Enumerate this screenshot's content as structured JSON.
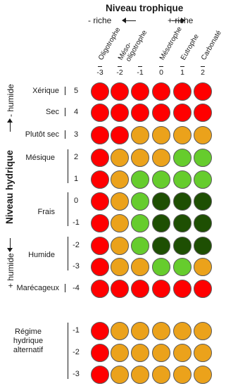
{
  "header": {
    "title": "Niveau trophique",
    "left_label": "- riche",
    "right_label": "+ riche"
  },
  "columns": [
    {
      "label": "Oligotrophe",
      "value": "-3"
    },
    {
      "label": "Méso-",
      "label2": "oligotrophe",
      "value": "-2"
    },
    {
      "label": "",
      "value": "-1"
    },
    {
      "label": "Mésotrophe",
      "value": "0"
    },
    {
      "label": "Eutrophe",
      "value": "1"
    },
    {
      "label": "Carbonaté",
      "value": "2"
    }
  ],
  "axis": {
    "title": "Niveau hydrique",
    "top_label": "- humide",
    "bottom_label": "+ humide"
  },
  "rows": [
    {
      "label": "Xérique",
      "value": "5",
      "dots": [
        "red",
        "red",
        "red",
        "red",
        "red",
        "red"
      ]
    },
    {
      "label": "Sec",
      "value": "4",
      "dots": [
        "red",
        "red",
        "red",
        "red",
        "red",
        "red"
      ]
    },
    {
      "label": "Plutôt sec",
      "value": "3",
      "dots": [
        "red",
        "red",
        "orange",
        "orange",
        "orange",
        "orange"
      ]
    },
    {
      "label": "",
      "value": "2",
      "dots": [
        "red",
        "orange",
        "orange",
        "orange",
        "lightgreen",
        "lightgreen"
      ]
    },
    {
      "label": "",
      "value": "1",
      "dots": [
        "red",
        "orange",
        "lightgreen",
        "lightgreen",
        "lightgreen",
        "lightgreen"
      ]
    },
    {
      "label": "",
      "value": "0",
      "dots": [
        "red",
        "orange",
        "lightgreen",
        "darkgreen",
        "darkgreen",
        "darkgreen"
      ]
    },
    {
      "label": "",
      "value": "-1",
      "dots": [
        "red",
        "orange",
        "lightgreen",
        "darkgreen",
        "darkgreen",
        "darkgreen"
      ]
    },
    {
      "label": "",
      "value": "-2",
      "dots": [
        "red",
        "orange",
        "lightgreen",
        "darkgreen",
        "darkgreen",
        "darkgreen"
      ]
    },
    {
      "label": "",
      "value": "-3",
      "dots": [
        "red",
        "orange",
        "orange",
        "lightgreen",
        "lightgreen",
        "orange"
      ]
    },
    {
      "label": "Marécageux",
      "value": "-4",
      "dots": [
        "red",
        "red",
        "red",
        "red",
        "red",
        "red"
      ]
    }
  ],
  "group_labels": {
    "mesique": "Mésique",
    "frais": "Frais",
    "humide": "Humide"
  },
  "alt": {
    "label_lines": [
      "Régime",
      "hydrique",
      "alternatif"
    ],
    "rows": [
      {
        "value": "-1",
        "dots": [
          "red",
          "orange",
          "orange",
          "orange",
          "orange",
          "orange"
        ]
      },
      {
        "value": "-2",
        "dots": [
          "red",
          "orange",
          "orange",
          "orange",
          "orange",
          "orange"
        ]
      },
      {
        "value": "-3",
        "dots": [
          "red",
          "orange",
          "orange",
          "orange",
          "orange",
          "orange"
        ]
      }
    ]
  },
  "colors": {
    "red": "#ff0000",
    "orange": "#eba21b",
    "lightgreen": "#66cc2d",
    "darkgreen": "#1e4f03"
  }
}
